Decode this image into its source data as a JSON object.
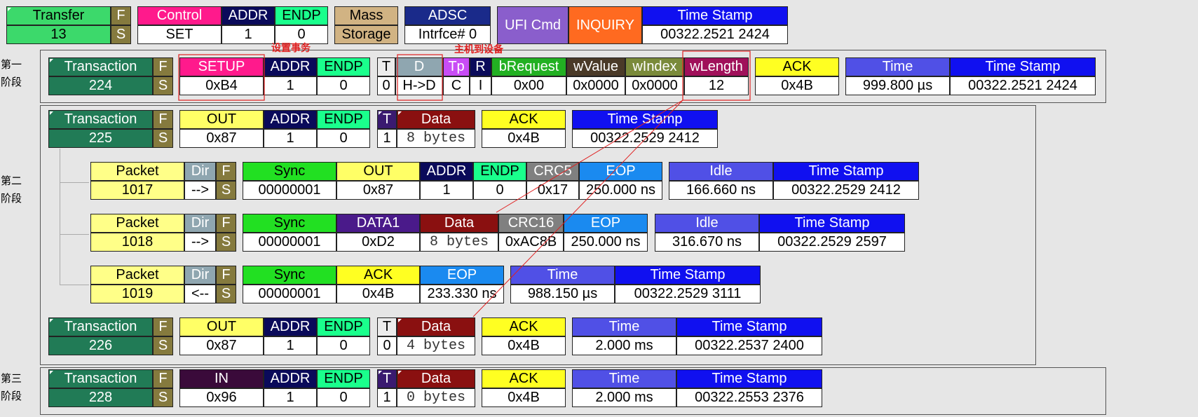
{
  "colors": {
    "accent_red": "#e02020",
    "green": "#3cd96b",
    "darkgreen": "#217b56",
    "olive": "#857a3e",
    "pink": "#ff1a8c",
    "navy": "#0a0a5a",
    "tan": "#d1b383",
    "blue": "#1010f0",
    "purple": "#8a5ecc",
    "orange": "#ff6a20",
    "yellow": "#ffff66",
    "maroon": "#8a1010",
    "violet": "#5050e6"
  },
  "annotations": {
    "setup_tx": "设置事务",
    "host_to_dev": "主机到设备"
  },
  "phases": {
    "p1": "第一阶段",
    "p2": "第二阶段",
    "p3": "第三阶段"
  },
  "transfer": {
    "transfer": {
      "h": "Transfer",
      "v": "13"
    },
    "fs": {
      "h": "F",
      "v": "S"
    },
    "control": {
      "h": "Control",
      "v": "SET"
    },
    "addr": {
      "h": "ADDR",
      "v": "1"
    },
    "endp": {
      "h": "ENDP",
      "v": "0"
    },
    "mass": {
      "h": "Mass",
      "v": "Storage"
    },
    "adsc": {
      "h": "ADSC",
      "v": "Intrfce# 0"
    },
    "ufi": "UFI Cmd",
    "inquiry": "INQUIRY",
    "ts": {
      "h": "Time Stamp",
      "v": "00322.2521 2424"
    }
  },
  "t224": {
    "trans": {
      "h": "Transaction",
      "v": "224"
    },
    "fs": {
      "h": "F",
      "v": "S"
    },
    "setup": {
      "h": "SETUP",
      "v": "0xB4"
    },
    "addr": {
      "h": "ADDR",
      "v": "1"
    },
    "endp": {
      "h": "ENDP",
      "v": "0"
    },
    "t": {
      "h": "T",
      "v": "0"
    },
    "d": {
      "h": "D",
      "v": "H->D"
    },
    "tp": {
      "h": "Tp",
      "v": "C"
    },
    "r": {
      "h": "R",
      "v": "I"
    },
    "breq": {
      "h": "bRequest",
      "v": "0x00"
    },
    "wval": {
      "h": "wValue",
      "v": "0x0000"
    },
    "widx": {
      "h": "wIndex",
      "v": "0x0000"
    },
    "wlen": {
      "h": "wLength",
      "v": "12"
    },
    "ack": {
      "h": "ACK",
      "v": "0x4B"
    },
    "time": {
      "h": "Time",
      "v": "999.800 µs"
    },
    "ts": {
      "h": "Time Stamp",
      "v": "00322.2521 2424"
    }
  },
  "t225": {
    "trans": {
      "h": "Transaction",
      "v": "225"
    },
    "fs": {
      "h": "F",
      "v": "S"
    },
    "out": {
      "h": "OUT",
      "v": "0x87"
    },
    "addr": {
      "h": "ADDR",
      "v": "1"
    },
    "endp": {
      "h": "ENDP",
      "v": "0"
    },
    "t": {
      "h": "T",
      "v": "1"
    },
    "data": {
      "h": "Data",
      "v": "8 bytes"
    },
    "ack": {
      "h": "ACK",
      "v": "0x4B"
    },
    "ts": {
      "h": "Time Stamp",
      "v": "00322.2529 2412"
    }
  },
  "p1017": {
    "packet": {
      "h": "Packet",
      "v": "1017"
    },
    "dir": {
      "h": "Dir",
      "v": "-->"
    },
    "fs": {
      "h": "F",
      "v": "S"
    },
    "sync": {
      "h": "Sync",
      "v": "00000001"
    },
    "out": {
      "h": "OUT",
      "v": "0x87"
    },
    "addr": {
      "h": "ADDR",
      "v": "1"
    },
    "endp": {
      "h": "ENDP",
      "v": "0"
    },
    "crc5": {
      "h": "CRC5",
      "v": "0x17"
    },
    "eop": {
      "h": "EOP",
      "v": "250.000 ns"
    },
    "idle": {
      "h": "Idle",
      "v": "166.660 ns"
    },
    "ts": {
      "h": "Time Stamp",
      "v": "00322.2529 2412"
    }
  },
  "p1018": {
    "packet": {
      "h": "Packet",
      "v": "1018"
    },
    "dir": {
      "h": "Dir",
      "v": "-->"
    },
    "fs": {
      "h": "F",
      "v": "S"
    },
    "sync": {
      "h": "Sync",
      "v": "00000001"
    },
    "data1": {
      "h": "DATA1",
      "v": "0xD2"
    },
    "data": {
      "h": "Data",
      "v": "8 bytes"
    },
    "crc16": {
      "h": "CRC16",
      "v": "0xAC8B"
    },
    "eop": {
      "h": "EOP",
      "v": "250.000 ns"
    },
    "idle": {
      "h": "Idle",
      "v": "316.670 ns"
    },
    "ts": {
      "h": "Time Stamp",
      "v": "00322.2529 2597"
    }
  },
  "p1019": {
    "packet": {
      "h": "Packet",
      "v": "1019"
    },
    "dir": {
      "h": "Dir",
      "v": "<--"
    },
    "fs": {
      "h": "F",
      "v": "S"
    },
    "sync": {
      "h": "Sync",
      "v": "00000001"
    },
    "ack": {
      "h": "ACK",
      "v": "0x4B"
    },
    "eop": {
      "h": "EOP",
      "v": "233.330 ns"
    },
    "time": {
      "h": "Time",
      "v": "988.150 µs"
    },
    "ts": {
      "h": "Time Stamp",
      "v": "00322.2529 3111"
    }
  },
  "t226": {
    "trans": {
      "h": "Transaction",
      "v": "226"
    },
    "fs": {
      "h": "F",
      "v": "S"
    },
    "out": {
      "h": "OUT",
      "v": "0x87"
    },
    "addr": {
      "h": "ADDR",
      "v": "1"
    },
    "endp": {
      "h": "ENDP",
      "v": "0"
    },
    "t": {
      "h": "T",
      "v": "0"
    },
    "data": {
      "h": "Data",
      "v": "4 bytes"
    },
    "ack": {
      "h": "ACK",
      "v": "0x4B"
    },
    "time": {
      "h": "Time",
      "v": "2.000 ms"
    },
    "ts": {
      "h": "Time Stamp",
      "v": "00322.2537 2400"
    }
  },
  "t228": {
    "trans": {
      "h": "Transaction",
      "v": "228"
    },
    "fs": {
      "h": "F",
      "v": "S"
    },
    "in": {
      "h": "IN",
      "v": "0x96"
    },
    "addr": {
      "h": "ADDR",
      "v": "1"
    },
    "endp": {
      "h": "ENDP",
      "v": "0"
    },
    "t": {
      "h": "T",
      "v": "1"
    },
    "data": {
      "h": "Data",
      "v": "0 bytes"
    },
    "ack": {
      "h": "ACK",
      "v": "0x4B"
    },
    "time": {
      "h": "Time",
      "v": "2.000 ms"
    },
    "ts": {
      "h": "Time Stamp",
      "v": "00322.2553 2376"
    }
  }
}
